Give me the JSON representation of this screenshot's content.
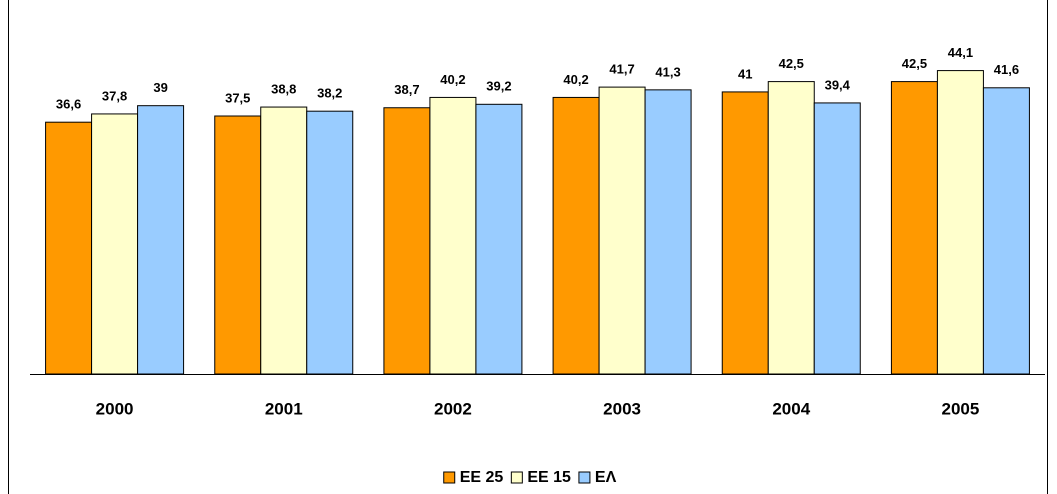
{
  "chart_data": {
    "type": "bar",
    "categories": [
      "2000",
      "2001",
      "2002",
      "2003",
      "2004",
      "2005"
    ],
    "series": [
      {
        "name": "ΕΕ 25",
        "color": "#FF9900",
        "values": [
          36.6,
          37.5,
          38.7,
          40.2,
          41,
          42.5
        ],
        "value_labels": [
          "36,6",
          "37,5",
          "38,7",
          "40,2",
          "41",
          "42,5"
        ]
      },
      {
        "name": "ΕΕ 15",
        "color": "#FFFFCC",
        "values": [
          37.8,
          38.8,
          40.2,
          41.7,
          42.5,
          44.1
        ],
        "value_labels": [
          "37,8",
          "38,8",
          "40,2",
          "41,7",
          "42,5",
          "44,1"
        ]
      },
      {
        "name": "ΕΛ",
        "color": "#99CCFF",
        "values": [
          39,
          38.2,
          39.2,
          41.3,
          39.4,
          41.6
        ],
        "value_labels": [
          "39",
          "38,2",
          "39,2",
          "41,3",
          "39,4",
          "41,6"
        ]
      }
    ],
    "ylim": [
      0,
      50
    ],
    "legend": "bottom"
  }
}
